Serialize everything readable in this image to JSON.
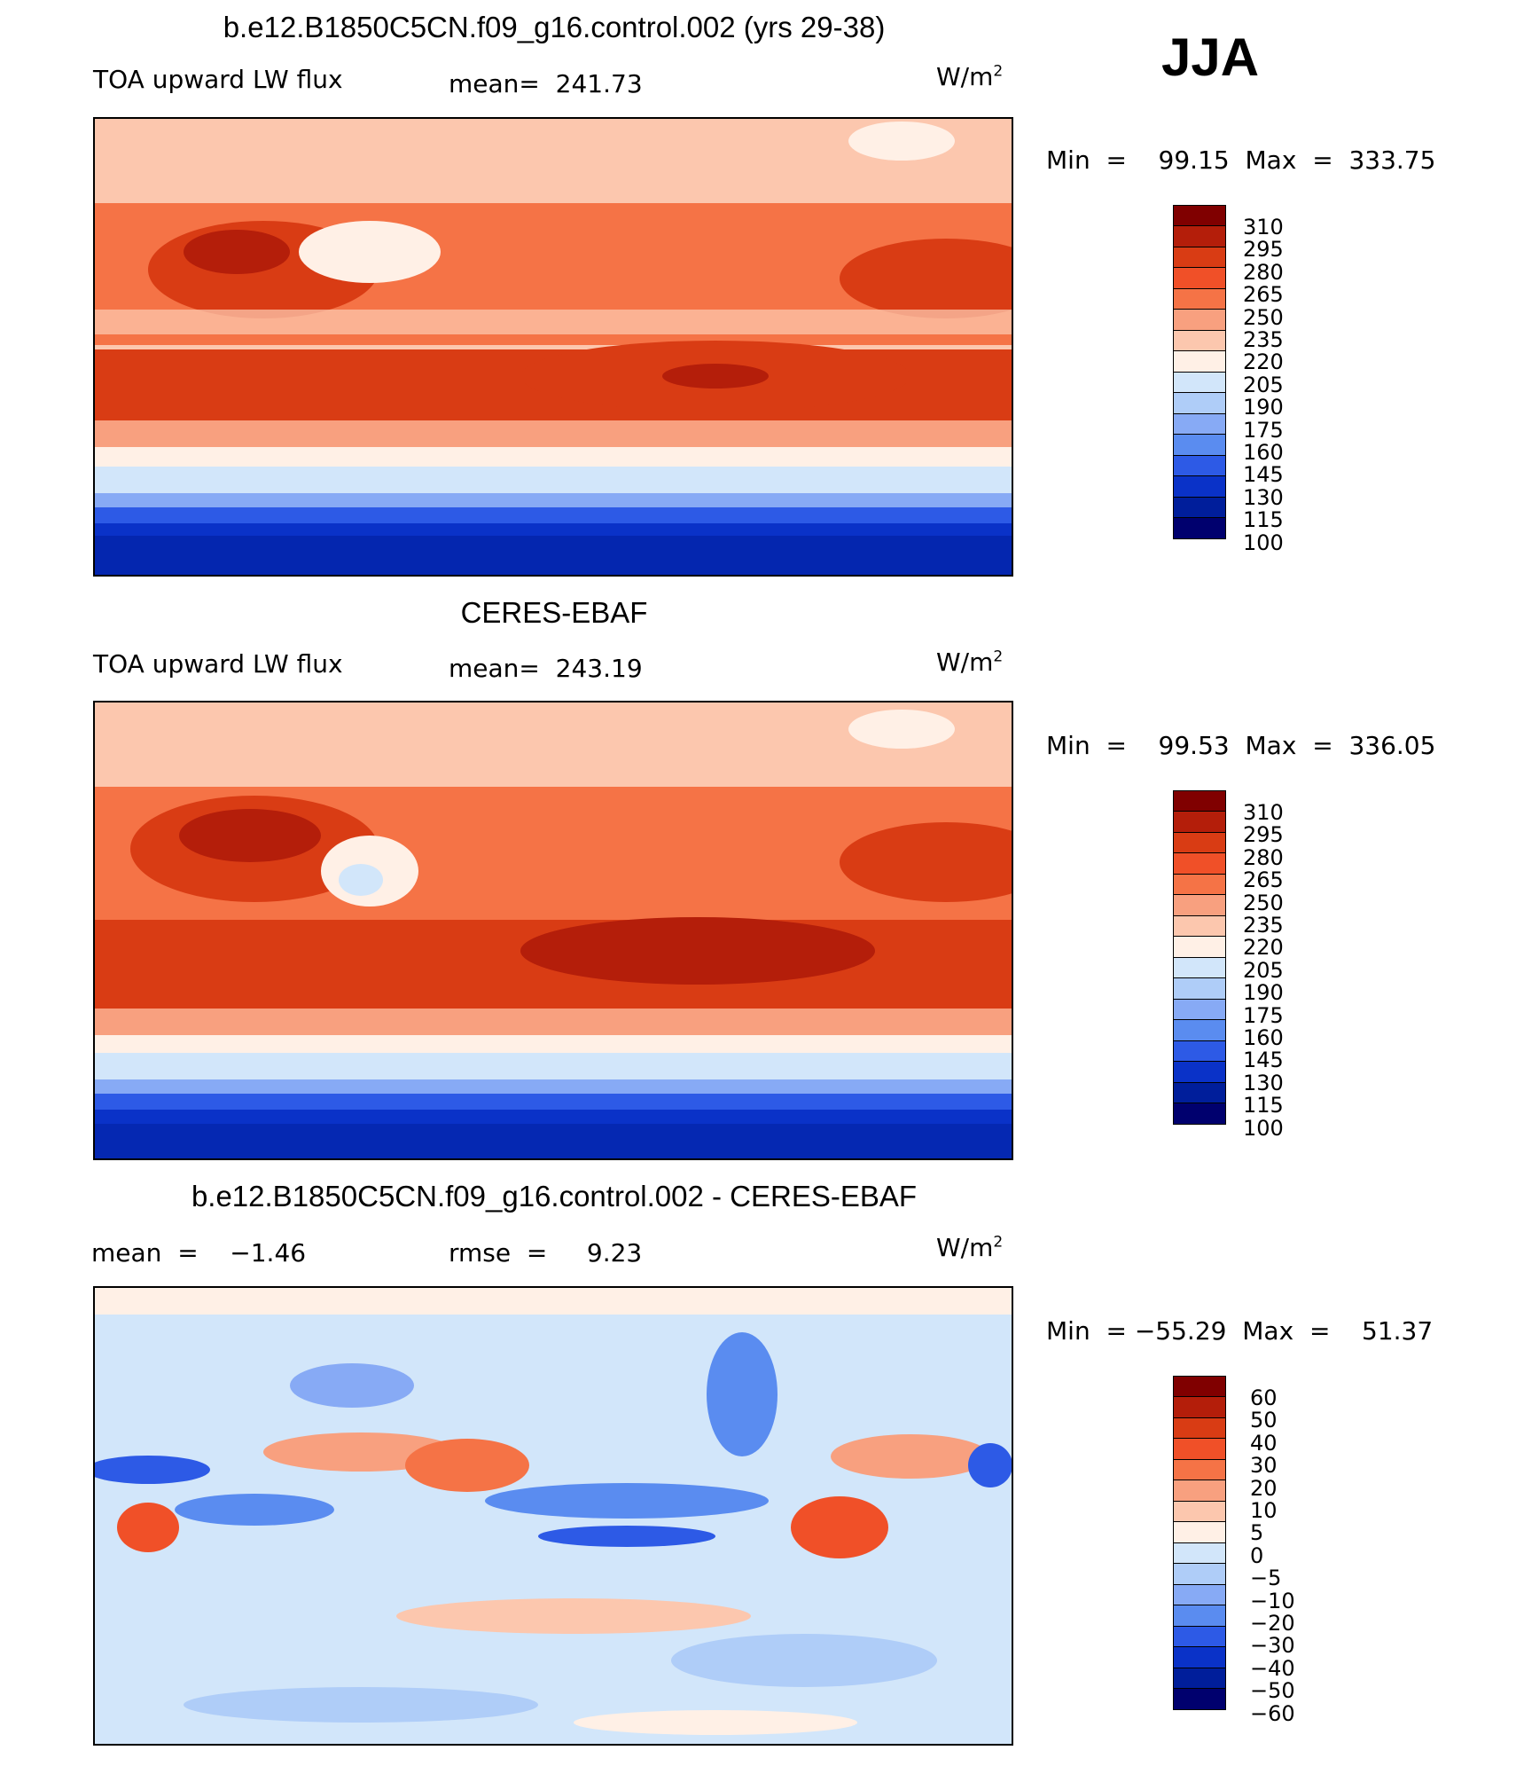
{
  "season": "JJA",
  "panels": [
    {
      "title": "b.e12.B1850C5CN.f09_g16.control.002 (yrs 29-38)",
      "variable": "TOA upward LW flux",
      "stat_text": "mean=  241.73",
      "units": "W/m",
      "units_sup": "2",
      "minmax": "Min  =    99.15  Max  =  333.75",
      "colorbar_labels": [
        "310",
        "295",
        "280",
        "265",
        "250",
        "235",
        "220",
        "205",
        "190",
        "175",
        "160",
        "145",
        "130",
        "115",
        "100"
      ]
    },
    {
      "title": "CERES-EBAF",
      "variable": "TOA upward LW flux",
      "stat_text": "mean=  243.19",
      "units": "W/m",
      "units_sup": "2",
      "minmax": "Min  =    99.53  Max  =  336.05",
      "colorbar_labels": [
        "310",
        "295",
        "280",
        "265",
        "250",
        "235",
        "220",
        "205",
        "190",
        "175",
        "160",
        "145",
        "130",
        "115",
        "100"
      ]
    },
    {
      "title": "b.e12.B1850C5CN.f09_g16.control.002 - CERES-EBAF",
      "variable": "mean  =    −1.46",
      "stat_text": "rmse  =     9.23",
      "units": "W/m",
      "units_sup": "2",
      "minmax": "Min  = −55.29  Max  =    51.37",
      "colorbar_labels": [
        "60",
        "50",
        "40",
        "30",
        "20",
        "10",
        "5",
        "0",
        "−5",
        "−10",
        "−20",
        "−30",
        "−40",
        "−50",
        "−60"
      ]
    }
  ],
  "colors": {
    "flux_scale": [
      "#800000",
      "#b41e0a",
      "#d93c14",
      "#f05028",
      "#f57346",
      "#f8a07f",
      "#fcc7ae",
      "#fff0e6",
      "#d2e6fa",
      "#afcdf8",
      "#87aaf5",
      "#5a8cf0",
      "#2d5ae6",
      "#0a32c8",
      "#001e9b",
      "#00006e"
    ],
    "diff_scale": [
      "#800000",
      "#b41e0a",
      "#d93c14",
      "#f05028",
      "#f57346",
      "#f8a07f",
      "#fcc7ae",
      "#fff0e6",
      "#d2e6fa",
      "#afcdf8",
      "#87aaf5",
      "#5a8cf0",
      "#2d5ae6",
      "#0a32c8",
      "#001e9b",
      "#00006e"
    ]
  }
}
